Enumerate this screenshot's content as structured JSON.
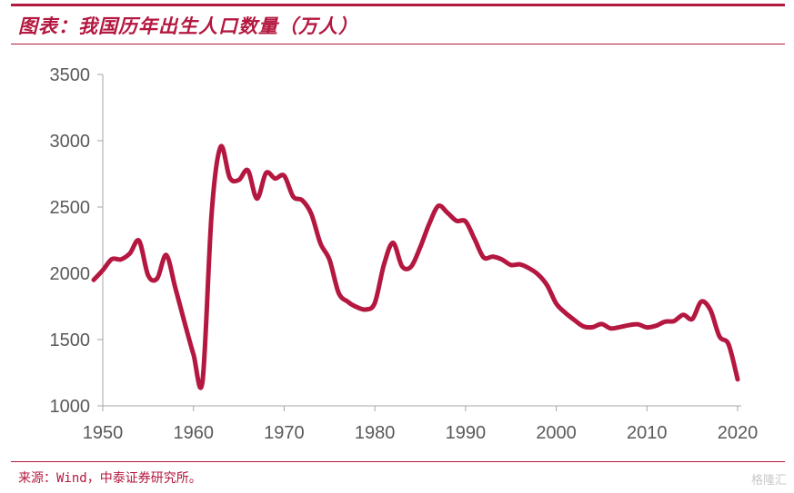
{
  "header": {
    "title": "图表：我国历年出生人口数量（万人）"
  },
  "footer": {
    "source": "来源：Wind，中泰证券研究所。",
    "watermark": "格隆汇"
  },
  "colors": {
    "accent": "#b4173f",
    "axis": "#a6a6a6",
    "text": "#595959"
  },
  "chart_data": {
    "type": "line",
    "title": "",
    "xlabel": "",
    "ylabel": "",
    "xlim": [
      1950,
      2020
    ],
    "ylim": [
      1000,
      3500
    ],
    "xticks": [
      1950,
      1960,
      1970,
      1980,
      1990,
      2000,
      2010,
      2020
    ],
    "yticks": [
      1000,
      1500,
      2000,
      2500,
      3000,
      3500
    ],
    "grid": false,
    "legend": "none",
    "series": [
      {
        "x": [
          1949,
          1950,
          1951,
          1952,
          1953,
          1954,
          1955,
          1956,
          1957,
          1958,
          1959,
          1960,
          1961,
          1962,
          1963,
          1964,
          1965,
          1966,
          1967,
          1968,
          1969,
          1970,
          1971,
          1972,
          1973,
          1974,
          1975,
          1976,
          1977,
          1978,
          1979,
          1980,
          1981,
          1982,
          1983,
          1984,
          1985,
          1986,
          1987,
          1988,
          1989,
          1990,
          1991,
          1992,
          1993,
          1994,
          1995,
          1996,
          1997,
          1998,
          1999,
          2000,
          2001,
          2002,
          2003,
          2004,
          2005,
          2006,
          2007,
          2008,
          2009,
          2010,
          2011,
          2012,
          2013,
          2014,
          2015,
          2016,
          2017,
          2018,
          2019,
          2020
        ],
        "values": [
          1950,
          2023,
          2107,
          2105,
          2151,
          2245,
          1984,
          1961,
          2138,
          1889,
          1635,
          1389,
          1187,
          2451,
          2954,
          2721,
          2704,
          2777,
          2563,
          2757,
          2715,
          2736,
          2578,
          2550,
          2447,
          2226,
          2102,
          1853,
          1786,
          1745,
          1727,
          1776,
          2064,
          2230,
          2052,
          2050,
          2196,
          2374,
          2508,
          2457,
          2396,
          2391,
          2258,
          2119,
          2126,
          2104,
          2063,
          2067,
          2038,
          1991,
          1909,
          1771,
          1702,
          1647,
          1599,
          1593,
          1617,
          1584,
          1594,
          1608,
          1615,
          1592,
          1604,
          1635,
          1640,
          1687,
          1655,
          1786,
          1723,
          1523,
          1465,
          1200
        ]
      }
    ]
  }
}
